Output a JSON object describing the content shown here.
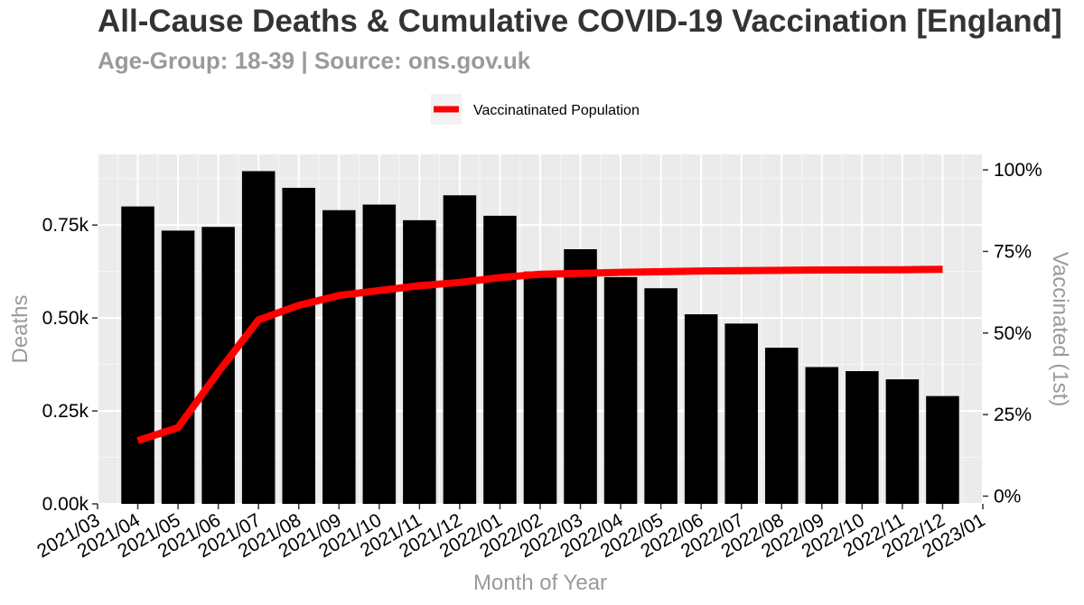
{
  "chart_data": {
    "type": "bar",
    "title": "All-Cause Deaths & Cumulative COVID-19 Vaccination [England]",
    "subtitle": "Age-Group: 18-39 | Source: ons.gov.uk",
    "xlabel": "Month of Year",
    "ylabel": "Deaths",
    "y2label": "Vaccinated (1st)",
    "categories": [
      "2021/04",
      "2021/05",
      "2021/06",
      "2021/07",
      "2021/08",
      "2021/09",
      "2021/10",
      "2021/11",
      "2021/12",
      "2022/01",
      "2022/02",
      "2022/03",
      "2022/04",
      "2022/05",
      "2022/06",
      "2022/07",
      "2022/08",
      "2022/09",
      "2022/10",
      "2022/11",
      "2022/12"
    ],
    "x_tick_labels": [
      "2021/03",
      "2021/04",
      "2021/05",
      "2021/06",
      "2021/07",
      "2021/08",
      "2021/09",
      "2021/10",
      "2021/11",
      "2021/12",
      "2022/01",
      "2022/02",
      "2022/03",
      "2022/04",
      "2022/05",
      "2022/06",
      "2022/07",
      "2022/08",
      "2022/09",
      "2022/10",
      "2022/11",
      "2022/12",
      "2023/01"
    ],
    "series": [
      {
        "values": [
          800,
          735,
          745,
          895,
          850,
          790,
          805,
          763,
          830,
          775,
          625,
          685,
          610,
          580,
          510,
          485,
          420,
          368,
          357,
          335,
          290
        ],
        "color": "#000000"
      },
      {
        "name": "Vaccinatinated Population",
        "type": "line",
        "axis": "right",
        "values": [
          17,
          21,
          38,
          54,
          58.5,
          61.5,
          63,
          64.5,
          65.5,
          67,
          68,
          68.3,
          68.6,
          68.8,
          69,
          69.1,
          69.2,
          69.3,
          69.35,
          69.4,
          69.5
        ],
        "color": "#ff0000"
      }
    ],
    "ylim": [
      0,
      940
    ],
    "y_ticks": [
      {
        "value": 0,
        "label": "0.00k"
      },
      {
        "value": 250,
        "label": "0.25k"
      },
      {
        "value": 500,
        "label": "0.50k"
      },
      {
        "value": 750,
        "label": "0.75k"
      }
    ],
    "y2lim": [
      -2.37,
      104.74
    ],
    "y2_ticks": [
      {
        "value": 0,
        "label": "0%"
      },
      {
        "value": 25,
        "label": "25%"
      },
      {
        "value": 50,
        "label": "50%"
      },
      {
        "value": 75,
        "label": "75%"
      },
      {
        "value": 100,
        "label": "100%"
      }
    ],
    "grid": true,
    "legend": "top"
  }
}
